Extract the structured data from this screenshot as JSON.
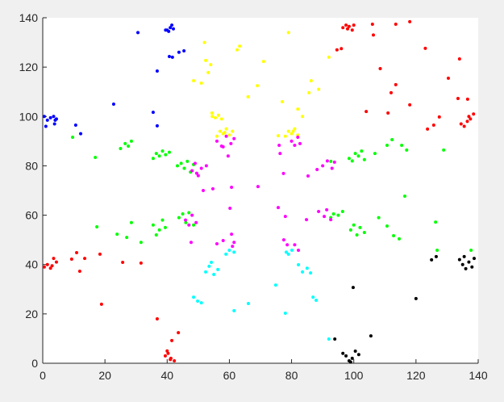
{
  "chart_data": {
    "type": "scatter",
    "xlim": [
      0,
      140
    ],
    "ylim": [
      0,
      140
    ],
    "xticks": [
      0,
      20,
      40,
      60,
      80,
      100,
      120,
      140
    ],
    "yticks": [
      0,
      20,
      40,
      60,
      80,
      100,
      120,
      140
    ],
    "series": [
      {
        "color": "#0000ff",
        "x": [
          0.5,
          1.5,
          2.5,
          3.5,
          4.4,
          3.8,
          1.0,
          4.0,
          40.0,
          41.0,
          42.0,
          39.5,
          41.5,
          40.5,
          36.8,
          40.7,
          41.7,
          43.8,
          45.4,
          30.6,
          22.8,
          10.6,
          12.2,
          35.5,
          36.8
        ],
        "y": [
          100,
          98.5,
          99.5,
          100,
          99,
          97,
          96,
          98.5,
          135,
          136,
          135.5,
          135,
          137,
          134.5,
          118.4,
          124.3,
          124,
          126,
          126.6,
          134,
          105,
          96.5,
          93,
          101.7,
          96.2
        ]
      },
      {
        "color": "#ffff00",
        "x": [
          52,
          54,
          53.2,
          52.4,
          48.5,
          51,
          63.3,
          62.5,
          71,
          69,
          66,
          79,
          77,
          86.3,
          88.7,
          85.6,
          92,
          54.4,
          54.5,
          55.5,
          56.5,
          57.5,
          56,
          57,
          58,
          59,
          60,
          61,
          58.5,
          82,
          83.5,
          78,
          79,
          80,
          81,
          82,
          80.5,
          75.7
        ],
        "y": [
          130,
          121,
          117.8,
          122.7,
          114.5,
          113.5,
          128.5,
          127,
          122.3,
          112.5,
          108,
          134,
          106,
          114.5,
          111,
          109.6,
          124,
          101.4,
          100,
          99.5,
          100.5,
          99,
          92,
          94,
          93,
          95,
          92.5,
          94,
          93.5,
          103,
          100,
          92,
          94,
          93,
          95,
          92.5,
          94,
          92.2
        ]
      },
      {
        "color": "#ff0000",
        "x": [
          96.5,
          97.5,
          98.5,
          99.5,
          100,
          98,
          94.6,
          96,
          106,
          106.3,
          113.5,
          118,
          123,
          108.5,
          113.5,
          112,
          111,
          104,
          118,
          130.4,
          133.5,
          136.6,
          134,
          134.5,
          135.5,
          136.5,
          137.5,
          138.5,
          137,
          127.5,
          125.7,
          123.7,
          0.5,
          1.5,
          2.5,
          3.5,
          4.4,
          3,
          9.3,
          10.9,
          13.5,
          11.9,
          18.4,
          18.9,
          25.7,
          31.6,
          39.4,
          40.3,
          41.2,
          42.3,
          40,
          41,
          41.5,
          43.6,
          36.8
        ],
        "y": [
          136,
          137,
          136.5,
          135,
          137,
          135.5,
          127,
          127.5,
          137.4,
          133,
          137.4,
          138.4,
          127.6,
          119.4,
          112.9,
          109.6,
          101.4,
          102,
          104.7,
          115.5,
          107.3,
          107,
          123.3,
          97,
          96,
          98,
          99,
          101,
          100,
          99.8,
          96.5,
          94.9,
          39,
          40,
          38.5,
          42.5,
          41,
          39.5,
          42.2,
          44.8,
          42.5,
          37.3,
          44.2,
          23.9,
          40.9,
          40.6,
          3,
          4,
          2,
          1,
          5,
          1.5,
          9.2,
          12.4,
          18
        ]
      },
      {
        "color": "#00ff00",
        "x": [
          9.6,
          16.9,
          25,
          26.5,
          27.5,
          28.5,
          35.5,
          36.5,
          37.5,
          38.5,
          39.5,
          40.7,
          43.3,
          44.5,
          45.5,
          46.5,
          47.5,
          48.5,
          17.4,
          23.9,
          27,
          28.5,
          31.6,
          35.5,
          36.5,
          37.5,
          38.5,
          39.4,
          43.8,
          45,
          46,
          47,
          48.5,
          98.5,
          99.5,
          100.5,
          101.5,
          102.5,
          103.4,
          106.8,
          110.7,
          112.3,
          115.4,
          117,
          92.6,
          128.9,
          92.6,
          93.5,
          95,
          96.4,
          99,
          100,
          101,
          102,
          103.4,
          108,
          110.7,
          112.8,
          114.6,
          116.4,
          126.3,
          126.8,
          137.7
        ],
        "y": [
          91.6,
          83.4,
          87,
          89,
          88,
          90,
          83,
          85,
          84,
          86,
          84.5,
          85.5,
          80,
          81,
          79,
          81.8,
          77.5,
          80.5,
          55.3,
          52.3,
          51,
          57,
          49,
          56,
          52,
          54,
          58,
          55,
          59,
          60.5,
          57,
          61,
          56,
          83,
          82,
          85,
          84,
          86,
          82.5,
          85,
          88.3,
          90.6,
          88.3,
          86.4,
          81.8,
          86.4,
          59,
          60.5,
          60,
          61.5,
          54,
          56,
          52,
          55,
          53,
          59,
          55.6,
          51.7,
          50.4,
          67.7,
          57.2,
          45.8,
          45.8
        ]
      },
      {
        "color": "#ff00ff",
        "x": [
          48,
          49,
          50,
          51,
          49.5,
          52.6,
          54.7,
          51.6,
          60.7,
          69.2,
          56,
          57.5,
          59,
          60.5,
          61.5,
          58,
          59.6,
          76,
          76.3,
          77.4,
          80,
          81,
          82,
          82.7,
          85.3,
          88.2,
          90,
          91.5,
          93,
          93.8,
          75.7,
          78,
          84.8,
          88.7,
          90.5,
          92.6,
          91.3,
          45.9,
          47,
          48,
          49.3,
          47.7,
          60.2,
          56,
          58,
          61.5,
          60.7,
          61,
          77.5,
          78.6,
          81,
          82.2
        ],
        "y": [
          78,
          81,
          76,
          79,
          77,
          80,
          70.7,
          70,
          71.3,
          71.6,
          90,
          88,
          92,
          89,
          91,
          87.7,
          84,
          88.3,
          85,
          76.9,
          90,
          88.3,
          91.6,
          89,
          75.9,
          78.5,
          80,
          82,
          79,
          81.5,
          63.1,
          59.5,
          58.2,
          61.5,
          59.5,
          58.2,
          62.2,
          58,
          56,
          60,
          57,
          49,
          62.8,
          48.4,
          49.7,
          49,
          52.3,
          47.4,
          50,
          48,
          48,
          45.8
        ]
      },
      {
        "color": "#00ffff",
        "x": [
          52.4,
          53.5,
          55,
          56.3,
          54.2,
          48.5,
          49.8,
          51,
          58.9,
          60,
          61.5,
          61.5,
          66.1,
          74.9,
          78,
          78.3,
          79,
          80.1,
          82.2,
          83.5,
          85,
          86.1,
          86.9,
          87.9,
          92
        ],
        "y": [
          37,
          39.3,
          36,
          38,
          40.9,
          26.8,
          25.2,
          24.5,
          44.2,
          45.8,
          45,
          21.3,
          24.2,
          31.7,
          20.3,
          45,
          44.2,
          45.8,
          39.9,
          37,
          38.5,
          36.6,
          26.8,
          25.5,
          9.8
        ]
      },
      {
        "color": "#000000",
        "x": [
          96.5,
          97.5,
          98.5,
          99.5,
          100.5,
          101.6,
          99,
          93.9,
          99.8,
          105.5,
          120,
          125,
          126.5,
          134,
          135,
          136,
          137,
          138,
          138.7,
          135.5
        ],
        "y": [
          4,
          3,
          1,
          2,
          4.9,
          3.5,
          0.5,
          9.8,
          30.7,
          11.1,
          26.2,
          41.9,
          43.2,
          42,
          40,
          38.3,
          41,
          39,
          42.5,
          43.2
        ]
      }
    ]
  }
}
